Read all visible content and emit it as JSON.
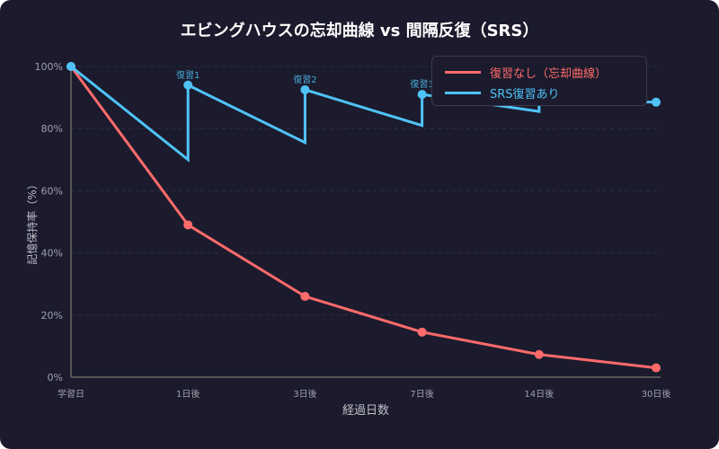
{
  "chart_data": {
    "type": "line",
    "title": "エビングハウスの忘却曲線 vs 間隔反復（SRS）",
    "xlabel": "経過日数",
    "ylabel": "記憶保持率（%）",
    "categories": [
      "学習日",
      "1日後",
      "3日後",
      "7日後",
      "14日後",
      "30日後"
    ],
    "yticks": [
      "0%",
      "20%",
      "40%",
      "60%",
      "80%",
      "100%"
    ],
    "ylim": [
      0,
      100
    ],
    "grid": "horizontal dashed",
    "legend_position": "top-right",
    "series": [
      {
        "name": "復習なし（忘却曲線）",
        "color": "#ff6b6b",
        "points": [
          {
            "x": "学習日",
            "y": 100
          },
          {
            "x": "1日後",
            "y": 49
          },
          {
            "x": "3日後",
            "y": 26
          },
          {
            "x": "7日後",
            "y": 14.5
          },
          {
            "x": "14日後",
            "y": 7.3
          },
          {
            "x": "30日後",
            "y": 3
          }
        ]
      },
      {
        "name": "SRS復習あり",
        "color": "#4fc3f7",
        "points": [
          {
            "x": "学習日",
            "y": 100,
            "marker": true
          },
          {
            "x": "1日後",
            "y": 70
          },
          {
            "x": "1日後",
            "y": 94,
            "marker": true,
            "label": "復習1"
          },
          {
            "x": "3日後",
            "y": 75.5
          },
          {
            "x": "3日後",
            "y": 92.5,
            "marker": true,
            "label": "復習2"
          },
          {
            "x": "7日後",
            "y": 81
          },
          {
            "x": "7日後",
            "y": 91,
            "marker": true,
            "label": "復習3"
          },
          {
            "x": "14日後",
            "y": 85.5
          },
          {
            "x": "14日後",
            "y": 89,
            "marker": true
          },
          {
            "x": "30日後",
            "y": 88.5,
            "marker": true
          }
        ]
      }
    ]
  }
}
